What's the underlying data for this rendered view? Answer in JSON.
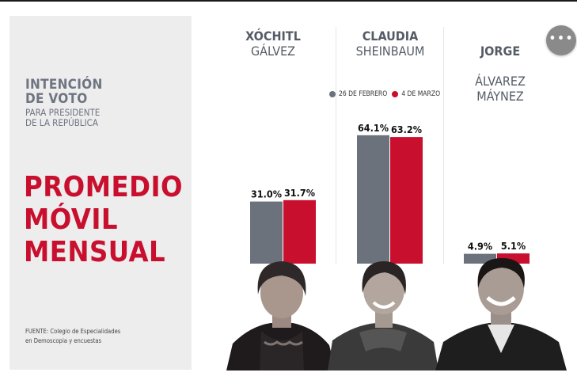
{
  "panel": {
    "heading": "INTENCIÓN\nDE VOTO",
    "subheading": "PARA PRESIDENTE\nDE LA REPÚBLICA",
    "big_title": "PROMEDIO\nMÓVIL\nMENSUAL",
    "source": "FUENTE: Colegio de Especialidades\nen Demoscopia y encuestas"
  },
  "candidates": [
    {
      "first": "XÓCHITL",
      "last": "GÁLVEZ"
    },
    {
      "first": "CLAUDIA",
      "last": "SHEINBAUM"
    },
    {
      "first": "JORGE",
      "last": "ÁLVAREZ\nMÁYNEZ"
    }
  ],
  "menu": {
    "label": "•••"
  },
  "colors": {
    "gray": "#6b727c",
    "red": "#c8102e",
    "accent": "#c8102e"
  },
  "chart_data": {
    "type": "bar",
    "categories": [
      "XÓCHITL GÁLVEZ",
      "CLAUDIA SHEINBAUM",
      "JORGE ÁLVAREZ MÁYNEZ"
    ],
    "series": [
      {
        "name": "26 DE FEBRERO",
        "values": [
          31.0,
          64.1,
          4.9
        ],
        "labels": [
          "31.0%",
          "64.1%",
          "4.9%"
        ],
        "color": "#6b727c"
      },
      {
        "name": "4 DE MARZO",
        "values": [
          31.7,
          63.2,
          5.1
        ],
        "labels": [
          "31.7%",
          "63.2%",
          "5.1%"
        ],
        "color": "#c8102e"
      }
    ],
    "ylim": [
      0,
      70
    ],
    "legend": "top",
    "grid": false
  }
}
